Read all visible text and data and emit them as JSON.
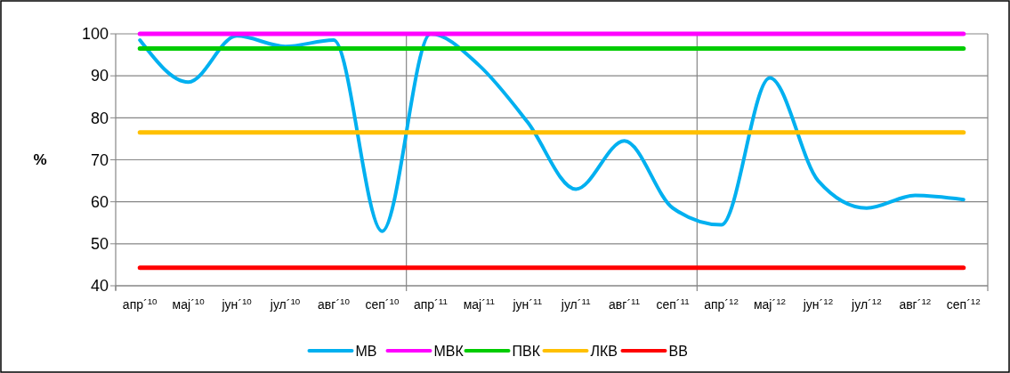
{
  "chart_data": {
    "type": "line",
    "ylabel": "%",
    "categories": [
      "апр´$^{10}$",
      "мај´$^{10}$",
      "јун´$^{10}$",
      "јул´$^{10}$",
      "авг´$^{10}$",
      "сеп´$^{10}$",
      "апр´$^{11}$",
      "мај´$^{11}$",
      "јун´$^{11}$",
      "јул´$^{11}$",
      "авг´$^{11}$",
      "сеп´$^{11}$",
      "апр´$^{12}$",
      "мај´$^{12}$",
      "јун´$^{12}$",
      "јул´$^{12}$",
      "авг´$^{12}$",
      "сеп´$^{12}$"
    ],
    "series": [
      {
        "name": "МВ",
        "color": "#00b0f0",
        "values": [
          98.5,
          88.5,
          99.5,
          97,
          98.5,
          53,
          100,
          92.5,
          79,
          63,
          74.5,
          58.5,
          54.5,
          89.5,
          65,
          58.5,
          61.5,
          60.5
        ]
      },
      {
        "name": "МВК",
        "color": "#ff00ff",
        "values": [
          100,
          100,
          100,
          100,
          100,
          100,
          100,
          100,
          100,
          100,
          100,
          100,
          100,
          100,
          100,
          100,
          100,
          100
        ]
      },
      {
        "name": "ПВК",
        "color": "#00cc00",
        "values": [
          96.5,
          96.5,
          96.5,
          96.5,
          96.5,
          96.5,
          96.5,
          96.5,
          96.5,
          96.5,
          96.5,
          96.5,
          96.5,
          96.5,
          96.5,
          96.5,
          96.5,
          96.5
        ]
      },
      {
        "name": "ЛКВ",
        "color": "#ffc000",
        "values": [
          76.5,
          76.5,
          76.5,
          76.5,
          76.5,
          76.5,
          76.5,
          76.5,
          76.5,
          76.5,
          76.5,
          76.5,
          76.5,
          76.5,
          76.5,
          76.5,
          76.5,
          76.5
        ]
      },
      {
        "name": "ВВ",
        "color": "#ff0000",
        "values": [
          44.3,
          44.3,
          44.3,
          44.3,
          44.3,
          44.3,
          44.3,
          44.3,
          44.3,
          44.3,
          44.3,
          44.3,
          44.3,
          44.3,
          44.3,
          44.3,
          44.3,
          44.3
        ]
      }
    ],
    "ylim": [
      40,
      100
    ],
    "yticks": [
      40,
      50,
      60,
      70,
      80,
      90,
      100
    ],
    "grid": true,
    "legend": "bottom",
    "marker": "none",
    "line_style": "solid"
  }
}
